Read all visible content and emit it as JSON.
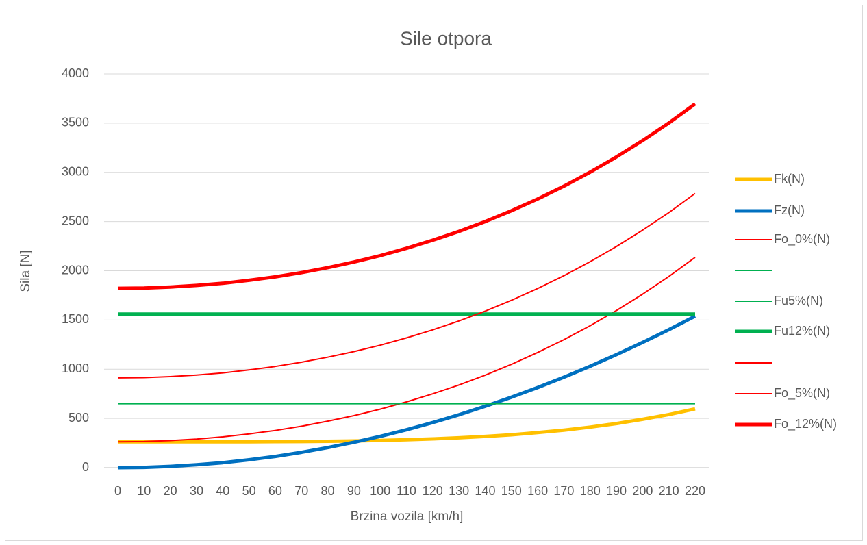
{
  "chart_data": {
    "type": "line",
    "title": "Sile otpora",
    "xlabel": "Brzina vozila [km/h]",
    "ylabel": "Sila [N]",
    "x": [
      0,
      10,
      20,
      30,
      40,
      50,
      60,
      70,
      80,
      90,
      100,
      110,
      120,
      130,
      140,
      150,
      160,
      170,
      180,
      190,
      200,
      210,
      220
    ],
    "xlim": [
      0,
      220
    ],
    "xticks": [
      0,
      10,
      20,
      30,
      40,
      50,
      60,
      70,
      80,
      90,
      100,
      110,
      120,
      130,
      140,
      150,
      160,
      170,
      180,
      190,
      200,
      210,
      220
    ],
    "ylim": [
      0,
      4000
    ],
    "yticks": [
      0,
      500,
      1000,
      1500,
      2000,
      2500,
      3000,
      3500,
      4000
    ],
    "grid": true,
    "legend": "right",
    "series": [
      {
        "name": "Fk(N)",
        "color": "#ffc000",
        "values": [
          262,
          262,
          262,
          262,
          262,
          263,
          264,
          265,
          268,
          271,
          276,
          283,
          292,
          303,
          317,
          334,
          356,
          381,
          412,
          448,
          491,
          540,
          597
        ]
      },
      {
        "name": "Fz(N)",
        "color": "#0070c0",
        "values": [
          0,
          3,
          13,
          29,
          51,
          80,
          114,
          156,
          204,
          258,
          318,
          385,
          458,
          537,
          623,
          716,
          814,
          919,
          1030,
          1148,
          1272,
          1402,
          1539
        ]
      },
      {
        "name": "Fo_0%(N)",
        "color": "#ff0000",
        "values": [
          262,
          265,
          275,
          291,
          313,
          343,
          378,
          421,
          472,
          529,
          594,
          668,
          750,
          840,
          940,
          1050,
          1170,
          1300,
          1442,
          1596,
          1763,
          1942,
          2136
        ]
      },
      {
        "name": "Fu5%(N)",
        "color": "#00b050",
        "values": [
          650,
          650,
          650,
          650,
          650,
          650,
          650,
          650,
          650,
          650,
          650,
          650,
          650,
          650,
          650,
          650,
          650,
          650,
          650,
          650,
          650,
          650,
          650
        ]
      },
      {
        "name": "Fu12%(N)",
        "color": "#00b050",
        "values": [
          1560,
          1560,
          1560,
          1560,
          1560,
          1560,
          1560,
          1560,
          1560,
          1560,
          1560,
          1560,
          1560,
          1560,
          1560,
          1560,
          1560,
          1560,
          1560,
          1560,
          1560,
          1560,
          1560
        ]
      },
      {
        "name": "Fo_5%(N)",
        "color": "#ff0000",
        "values": [
          912,
          915,
          925,
          941,
          963,
          993,
          1028,
          1071,
          1122,
          1179,
          1244,
          1318,
          1400,
          1490,
          1590,
          1700,
          1820,
          1950,
          2092,
          2246,
          2413,
          2592,
          2786
        ]
      },
      {
        "name": "Fo_12%(N)",
        "color": "#ff0000",
        "values": [
          1822,
          1825,
          1835,
          1851,
          1873,
          1903,
          1938,
          1981,
          2032,
          2089,
          2154,
          2228,
          2310,
          2400,
          2500,
          2610,
          2730,
          2860,
          3002,
          3156,
          3323,
          3502,
          3696
        ]
      }
    ]
  }
}
